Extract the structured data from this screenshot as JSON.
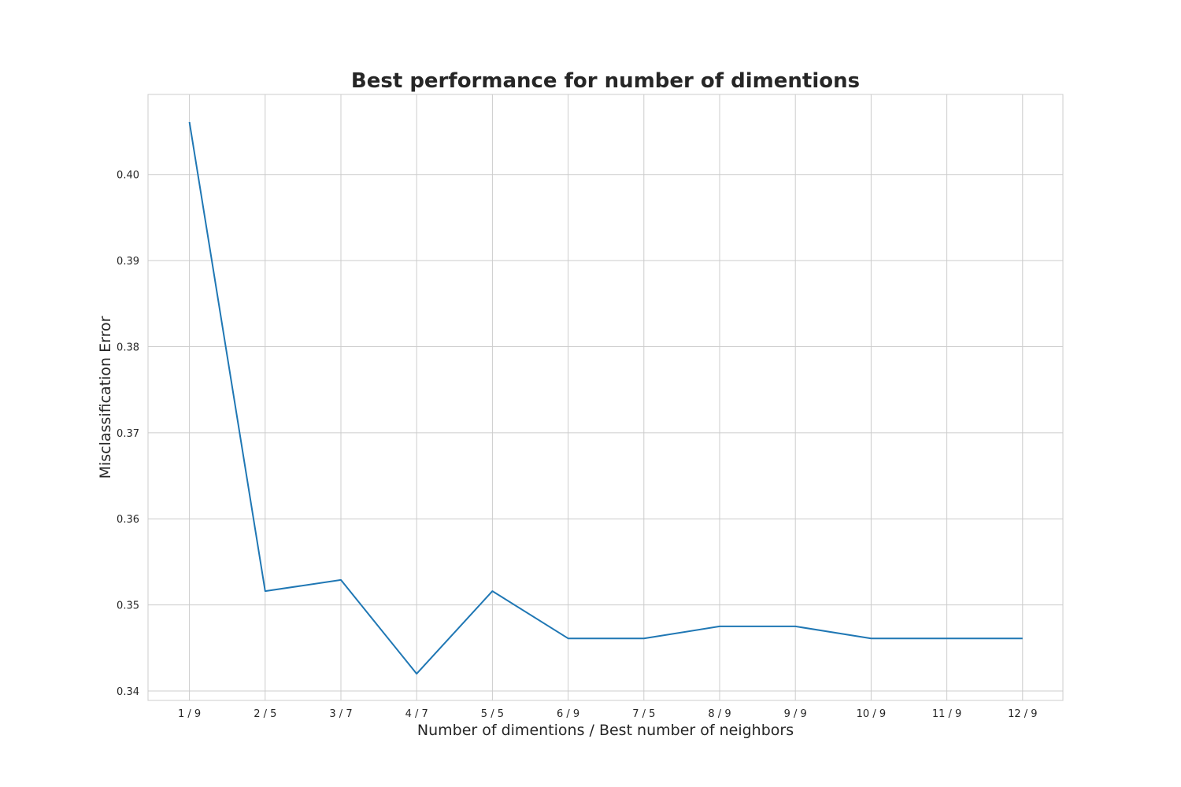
{
  "chart_data": {
    "type": "line",
    "title": "Best performance for number of dimentions",
    "xlabel": "Number of dimentions / Best number of neighbors",
    "ylabel": "Misclassification Error",
    "categories": [
      "1 / 9",
      "2 / 5",
      "3 / 7",
      "4 / 7",
      "5 / 5",
      "6 / 9",
      "7 / 5",
      "8 / 9",
      "9 / 9",
      "10 / 9",
      "11 / 9",
      "12 / 9"
    ],
    "series": [
      {
        "values": [
          0.4061,
          0.3516,
          0.3529,
          0.342,
          0.3516,
          0.3461,
          0.3461,
          0.3475,
          0.3475,
          0.3461,
          0.3461,
          0.3461
        ],
        "color": "#1f77b4"
      }
    ],
    "yticks": [
      "0.34",
      "0.35",
      "0.36",
      "0.37",
      "0.38",
      "0.39",
      "0.40"
    ],
    "ylim": [
      0.3389,
      0.4093
    ],
    "grid": true,
    "legend": "none"
  }
}
